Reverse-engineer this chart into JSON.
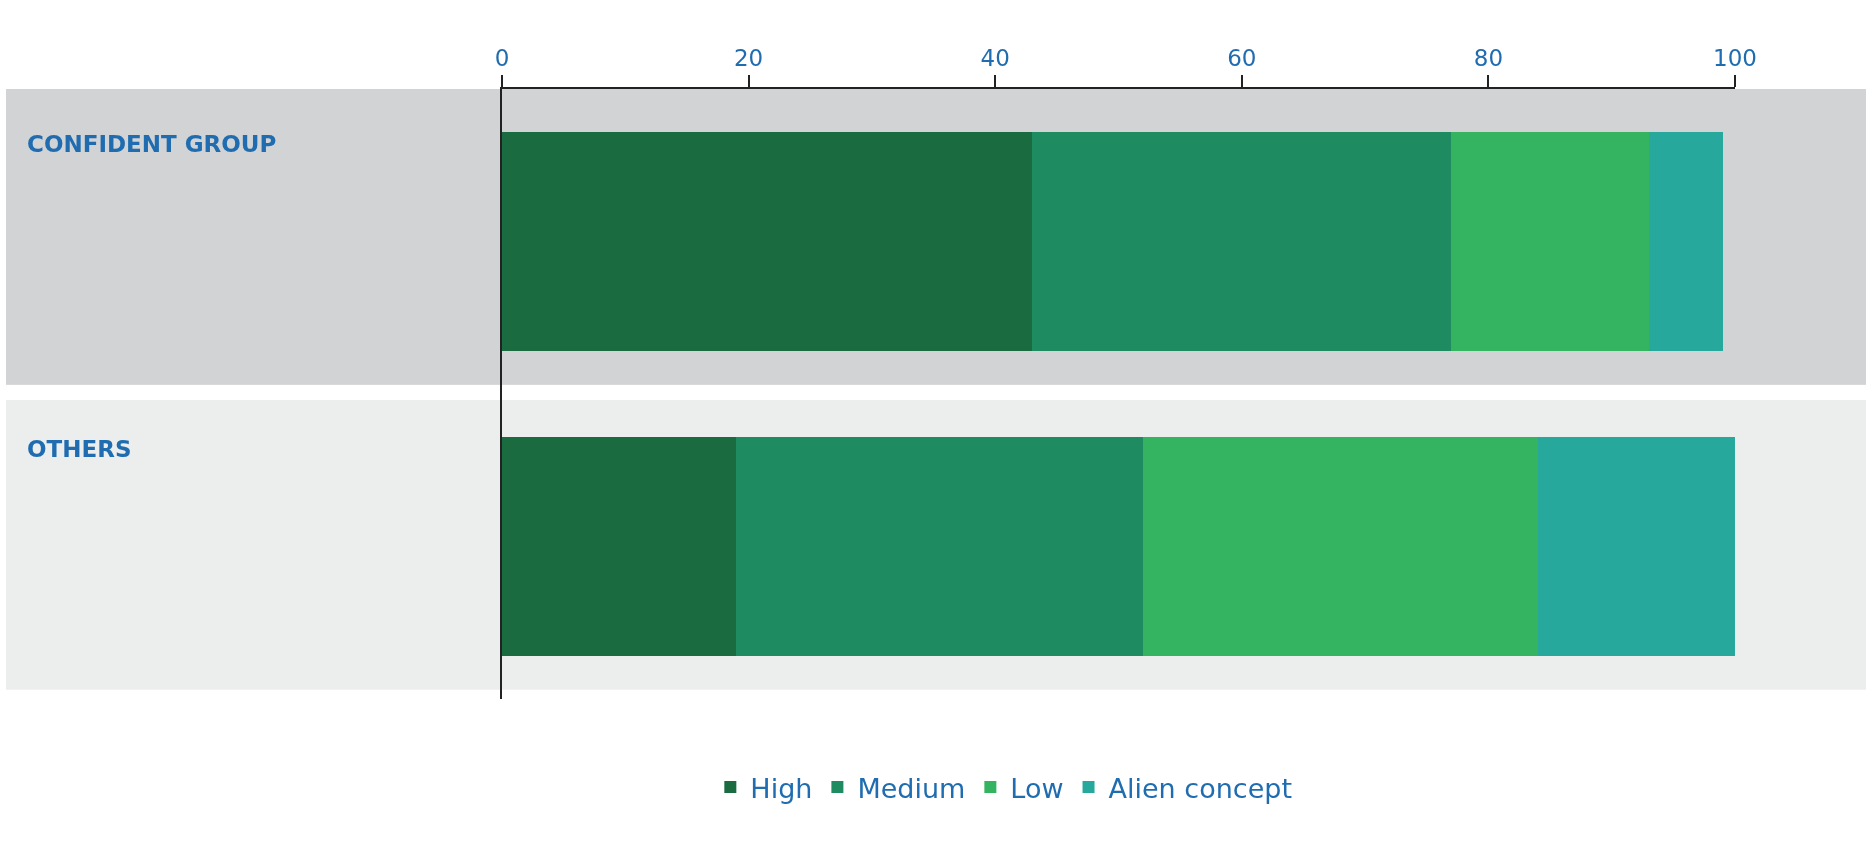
{
  "chart_data": {
    "type": "bar",
    "orientation": "horizontal",
    "stacked": true,
    "categories": [
      "CONFIDENT GROUP",
      "OTHERS"
    ],
    "series": [
      {
        "name": "High",
        "color": "#1a6b3f",
        "values": [
          43,
          19
        ]
      },
      {
        "name": "Medium",
        "color": "#1e8c60",
        "values": [
          34,
          33
        ]
      },
      {
        "name": "Low",
        "color": "#34b360",
        "values": [
          16,
          32
        ]
      },
      {
        "name": "Alien concept",
        "color": "#26a99c",
        "values": [
          6,
          16
        ]
      }
    ],
    "xlim": [
      0,
      100
    ],
    "xticks": [
      0,
      20,
      40,
      60,
      80,
      100
    ],
    "grid": false,
    "legend": "bottom"
  }
}
